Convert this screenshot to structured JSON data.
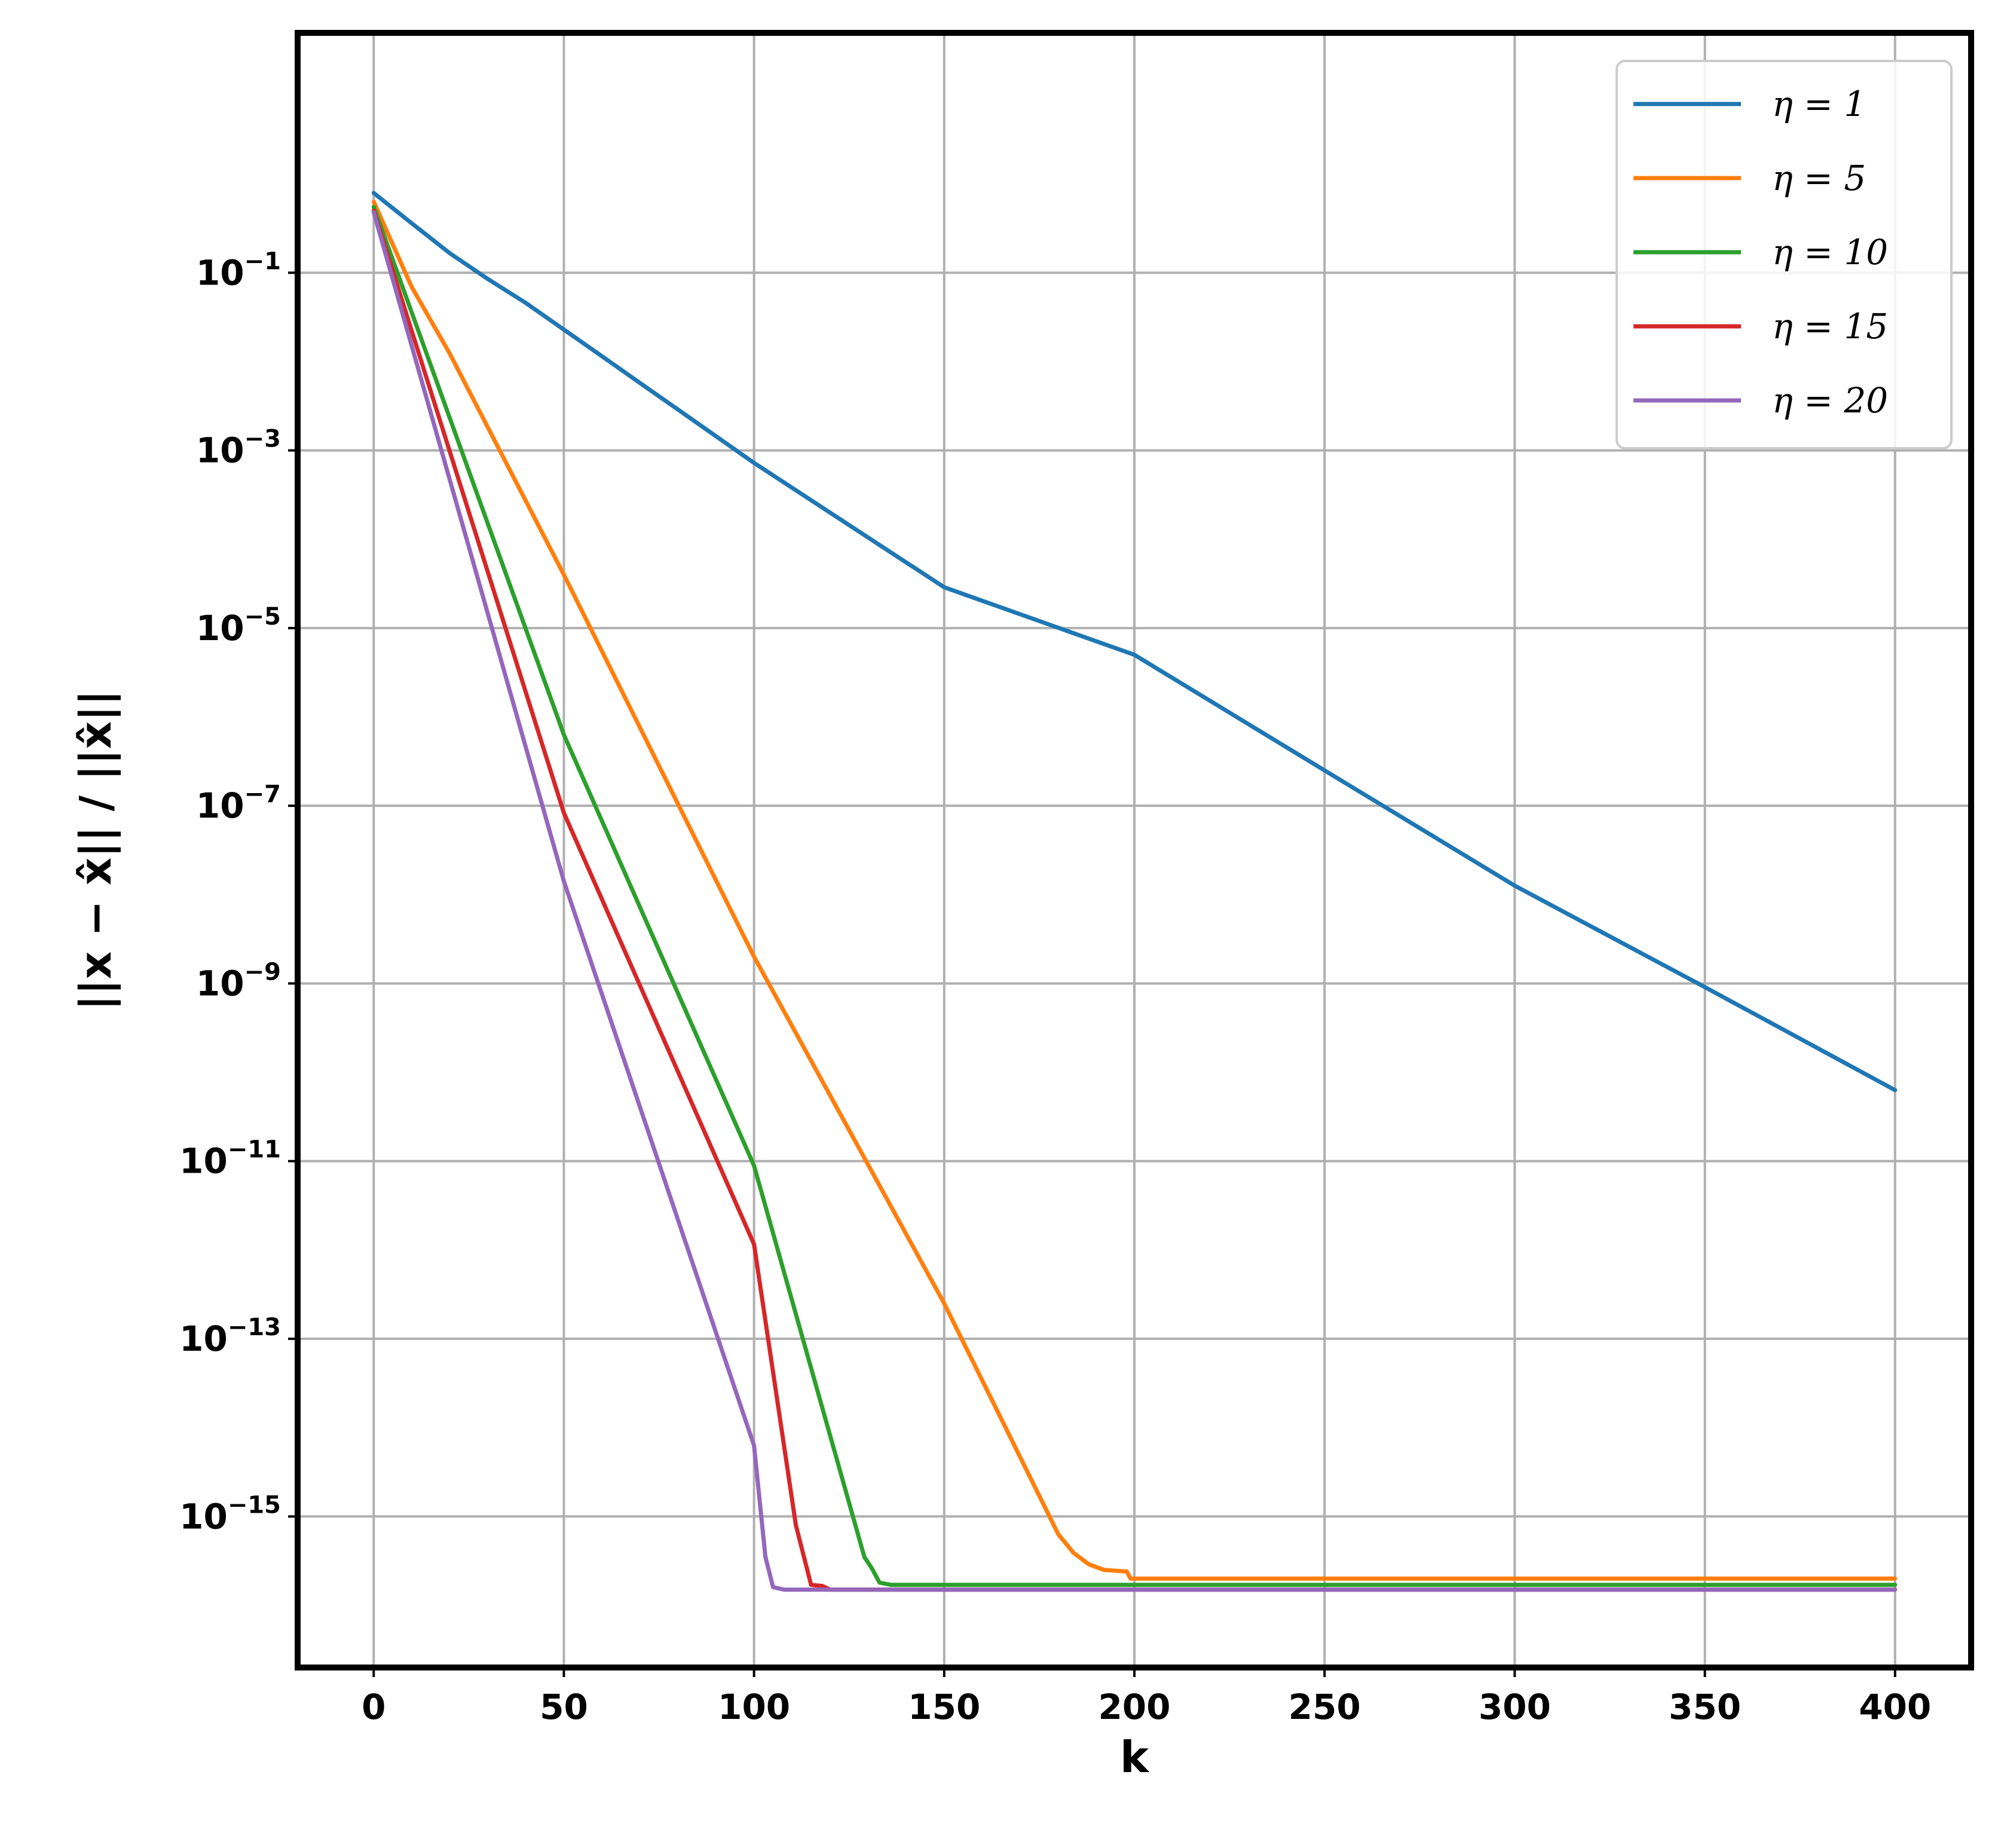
{
  "chart_data": {
    "type": "line",
    "title": "",
    "xlabel": "k",
    "ylabel": "||x − x̂|| / ||x̂||",
    "xlim": [
      -20,
      420
    ],
    "ylim_log10": [
      -16.7,
      1.7
    ],
    "yscale": "log",
    "grid": true,
    "legend_position": "top-right",
    "x_ticks": [
      "0",
      "50",
      "100",
      "150",
      "200",
      "250",
      "300",
      "350",
      "400"
    ],
    "x_tick_values": [
      0,
      50,
      100,
      150,
      200,
      250,
      300,
      350,
      400
    ],
    "y_ticks": [
      {
        "base": "10",
        "exp": "−1",
        "value": 0.1
      },
      {
        "base": "10",
        "exp": "−3",
        "value": 0.001
      },
      {
        "base": "10",
        "exp": "−5",
        "value": 1e-05
      },
      {
        "base": "10",
        "exp": "−7",
        "value": 1e-07
      },
      {
        "base": "10",
        "exp": "−9",
        "value": 1e-09
      },
      {
        "base": "10",
        "exp": "−11",
        "value": 1e-11
      },
      {
        "base": "10",
        "exp": "−13",
        "value": 1e-13
      },
      {
        "base": "10",
        "exp": "−15",
        "value": 1e-15
      }
    ],
    "series": [
      {
        "name": "η = 1",
        "color": "#1f77b4",
        "points": [
          [
            0,
            0.79
          ],
          [
            10,
            0.36
          ],
          [
            20,
            0.166
          ],
          [
            30,
            0.085
          ],
          [
            40,
            0.0457
          ],
          [
            50,
            0.0229
          ],
          [
            60,
            0.0115
          ],
          [
            70,
            0.00575
          ],
          [
            80,
            0.00288
          ],
          [
            100,
            0.000724
          ],
          [
            150,
            2.88e-05
          ],
          [
            200,
            5e-06
          ],
          [
            250,
            2.5e-07
          ],
          [
            300,
            1.26e-08
          ],
          [
            350,
            9.1e-10
          ],
          [
            400,
            6.3e-11
          ]
        ]
      },
      {
        "name": "η = 5",
        "color": "#ff7f0e",
        "points": [
          [
            0,
            0.63
          ],
          [
            10,
            0.069
          ],
          [
            20,
            0.0123
          ],
          [
            50,
            3.98e-05
          ],
          [
            100,
            2e-09
          ],
          [
            150,
            2.5e-13
          ],
          [
            180,
            6.3e-16
          ],
          [
            184,
            3.9e-16
          ],
          [
            188,
            2.9e-16
          ],
          [
            192,
            2.5e-16
          ],
          [
            198,
            2.4e-16
          ],
          [
            199,
            2e-16
          ],
          [
            400,
            2e-16
          ]
        ]
      },
      {
        "name": "η = 10",
        "color": "#2ca02c",
        "points": [
          [
            0,
            0.55
          ],
          [
            50,
            6.3e-07
          ],
          [
            100,
            8.9e-12
          ],
          [
            129,
            3.5e-16
          ],
          [
            131,
            2.6e-16
          ],
          [
            133,
            1.8e-16
          ],
          [
            136,
            1.7e-16
          ],
          [
            400,
            1.7e-16
          ]
        ]
      },
      {
        "name": "η = 15",
        "color": "#d62728",
        "points": [
          [
            0,
            0.5
          ],
          [
            50,
            8.3e-08
          ],
          [
            100,
            1.16e-12
          ],
          [
            111,
            8e-16
          ],
          [
            115,
            1.7e-16
          ],
          [
            118,
            1.65e-16
          ],
          [
            120,
            1.5e-16
          ],
          [
            400,
            1.5e-16
          ]
        ]
      },
      {
        "name": "η = 20",
        "color": "#9467bd",
        "points": [
          [
            0,
            0.48
          ],
          [
            50,
            1.41e-08
          ],
          [
            100,
            6.3e-15
          ],
          [
            103,
            3.5e-16
          ],
          [
            105,
            1.6e-16
          ],
          [
            108,
            1.5e-16
          ],
          [
            400,
            1.5e-16
          ]
        ]
      }
    ]
  }
}
